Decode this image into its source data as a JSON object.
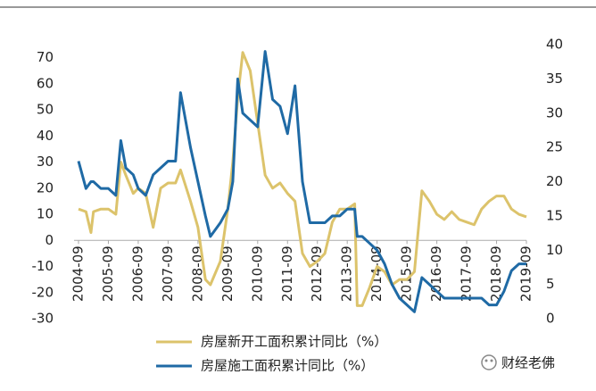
{
  "chart_data": {
    "type": "line",
    "x": [
      "2004-09",
      "2004-12",
      "2005-02",
      "2005-03",
      "2005-06",
      "2005-09",
      "2005-12",
      "2006-02",
      "2006-04",
      "2006-07",
      "2006-09",
      "2006-12",
      "2007-03",
      "2007-06",
      "2007-09",
      "2007-12",
      "2008-02",
      "2008-06",
      "2008-09",
      "2008-12",
      "2009-02",
      "2009-06",
      "2009-09",
      "2009-11",
      "2010-01",
      "2010-03",
      "2010-06",
      "2010-09",
      "2010-12",
      "2011-03",
      "2011-06",
      "2011-09",
      "2011-12",
      "2012-03",
      "2012-06",
      "2012-09",
      "2012-12",
      "2013-03",
      "2013-06",
      "2013-09",
      "2013-12",
      "2014-01",
      "2014-03",
      "2014-06",
      "2014-09",
      "2014-12",
      "2015-03",
      "2015-06",
      "2015-09",
      "2015-12",
      "2016-03",
      "2016-06",
      "2016-09",
      "2016-12",
      "2017-03",
      "2017-06",
      "2017-09",
      "2017-12",
      "2018-03",
      "2018-06",
      "2018-09",
      "2018-12",
      "2019-03",
      "2019-06",
      "2019-09"
    ],
    "xlim": [
      "2004-09",
      "2019-09"
    ],
    "xticks": [
      "2004-09",
      "2005-09",
      "2006-09",
      "2007-09",
      "2008-09",
      "2009-09",
      "2010-09",
      "2011-09",
      "2012-09",
      "2013-09",
      "2014-09",
      "2015-09",
      "2016-09",
      "2017-09",
      "2018-09",
      "2019-09"
    ],
    "ylim": [
      -30,
      75
    ],
    "yticks": [
      -30,
      -20,
      -10,
      0,
      10,
      20,
      30,
      40,
      50,
      60,
      70
    ],
    "y2lim": [
      0,
      40
    ],
    "y2ticks": [
      0,
      5,
      10,
      15,
      20,
      25,
      30,
      35,
      40
    ],
    "series": [
      {
        "name": "房屋新开工面积累计同比（%）",
        "color": "#dcc36b",
        "values": [
          12,
          11,
          3,
          11,
          12,
          12,
          10,
          30,
          25,
          18,
          20,
          18,
          5,
          20,
          22,
          22,
          27,
          15,
          5,
          -15,
          -17,
          -8,
          12,
          30,
          55,
          72,
          65,
          45,
          25,
          20,
          22,
          18,
          15,
          -5,
          -10,
          -8,
          -5,
          7,
          12,
          12,
          14,
          -25,
          -25,
          -18,
          -10,
          -12,
          -17,
          -15,
          -15,
          -12,
          19,
          15,
          10,
          8,
          11,
          8,
          7,
          6,
          12,
          15,
          17,
          17,
          12,
          10,
          9
        ]
      },
      {
        "name": "房屋施工面积累计同比（%）",
        "color": "#1f6aa5",
        "axis": "y2",
        "values": [
          23,
          19,
          20,
          20,
          19,
          19,
          18,
          26,
          22,
          21,
          19,
          18,
          21,
          22,
          23,
          23,
          33,
          25,
          20,
          15,
          12,
          14,
          16,
          20,
          35,
          30,
          29,
          28,
          39,
          32,
          31,
          27,
          34,
          20,
          14,
          14,
          14,
          15,
          15,
          16,
          16,
          12,
          12,
          11,
          10,
          8,
          5,
          3,
          2,
          1,
          6,
          5,
          4,
          3,
          3,
          3,
          3,
          3,
          3,
          2,
          2,
          4,
          7,
          8,
          8
        ]
      }
    ],
    "watermark": "财经老佛"
  }
}
